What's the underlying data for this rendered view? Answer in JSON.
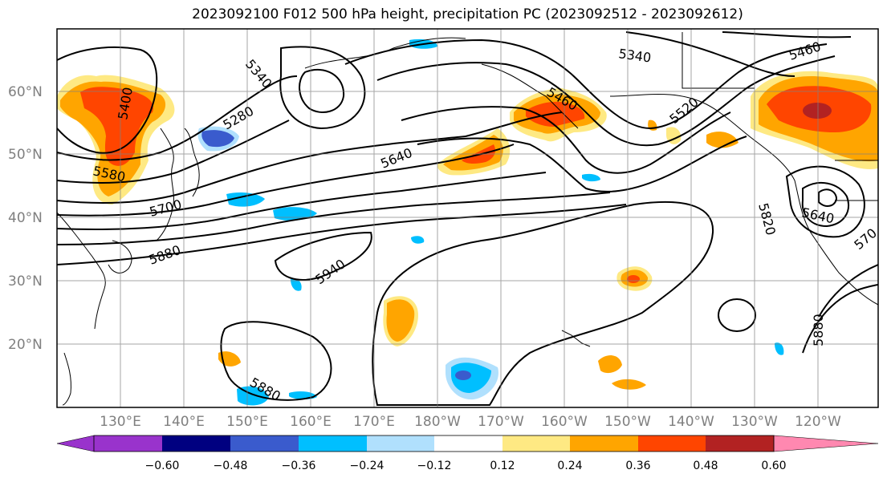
{
  "title": "2023092100 F012 500 hPa height, precipitation PC (2023092512 - 2023092612)",
  "lat_labels": [
    "60°N",
    "50°N",
    "40°N",
    "30°N",
    "20°N"
  ],
  "lon_labels": [
    "130°E",
    "140°E",
    "150°E",
    "160°E",
    "170°E",
    "180°W",
    "170°W",
    "160°W",
    "150°W",
    "140°W",
    "130°W",
    "120°W"
  ],
  "contour_labels": [
    "5400",
    "5340",
    "5280",
    "5580",
    "5700",
    "5880",
    "5940",
    "5640",
    "5460",
    "5520",
    "5340",
    "5460",
    "5640",
    "5820",
    "5880",
    "5880",
    "570"
  ],
  "colorbar": {
    "ticks": [
      "−0.60",
      "−0.48",
      "−0.36",
      "−0.24",
      "−0.12",
      "0.12",
      "0.24",
      "0.36",
      "0.48",
      "0.60"
    ],
    "colors": [
      "#9933cc",
      "#000080",
      "#3a5bcd",
      "#00bfff",
      "#b0e0fd",
      "#ffffff",
      "#fee983",
      "#ffa500",
      "#ff4500",
      "#b22222",
      "#ff88b0"
    ]
  },
  "colors": {
    "land": "#000000",
    "contour": "#000000",
    "grid": "#808080"
  }
}
